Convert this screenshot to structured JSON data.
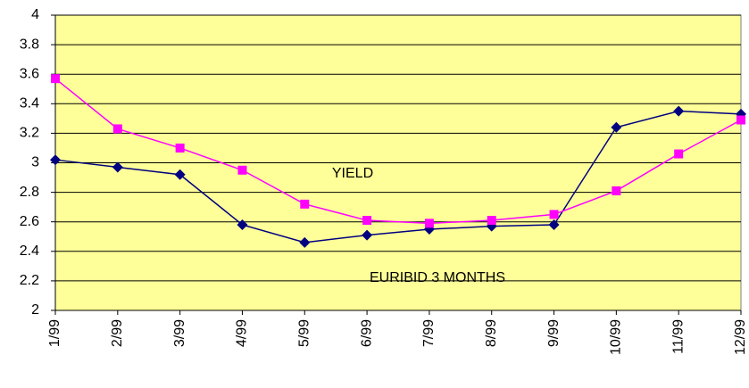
{
  "chart_data": {
    "type": "line",
    "categories": [
      "1/99",
      "2/99",
      "3/99",
      "4/99",
      "5/99",
      "6/99",
      "7/99",
      "8/99",
      "9/99",
      "10/99",
      "11/99",
      "12/99"
    ],
    "series": [
      {
        "name": "EURIBID 3 MONTHS",
        "color": "#000080",
        "marker": "diamond",
        "values": [
          3.02,
          2.97,
          2.92,
          2.58,
          2.46,
          2.51,
          2.55,
          2.57,
          2.58,
          3.24,
          3.35,
          3.33
        ]
      },
      {
        "name": "YIELD",
        "color": "#ff00ff",
        "marker": "square",
        "values": [
          3.57,
          3.23,
          3.1,
          2.95,
          2.72,
          2.61,
          2.59,
          2.61,
          2.65,
          2.81,
          3.06,
          3.29
        ]
      }
    ],
    "ylim": [
      2,
      4
    ],
    "yticks": [
      2,
      2.2,
      2.4,
      2.6,
      2.8,
      3,
      3.2,
      3.4,
      3.6,
      3.8,
      4
    ],
    "grid": true,
    "plot_background": "#ffff99"
  }
}
